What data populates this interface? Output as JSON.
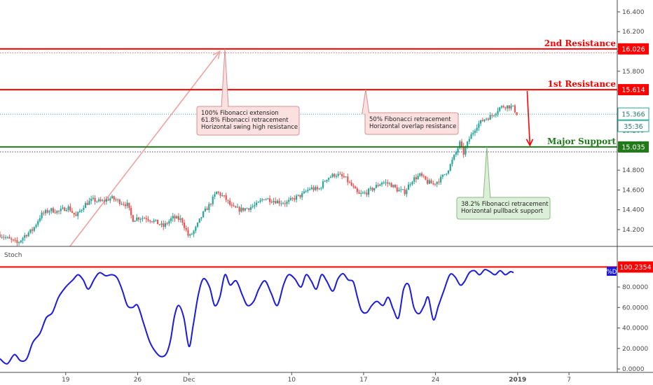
{
  "chart_data": [
    {
      "type": "candlestick",
      "panel": "price",
      "xlabel": "",
      "ylabel": "",
      "x_ticks": [
        {
          "label": "19",
          "day": 19
        },
        {
          "label": "26",
          "day": 26
        },
        {
          "label": "Dec",
          "day": 31
        },
        {
          "label": "10",
          "day": 41
        },
        {
          "label": "17",
          "day": 48
        },
        {
          "label": "24",
          "day": 55
        },
        {
          "label": "2019",
          "day": 63
        },
        {
          "label": "7",
          "day": 68
        }
      ],
      "x_range_days": [
        12.6,
        72.7
      ],
      "ylim": [
        14.03,
        16.52
      ],
      "y_ticks": [
        {
          "value": 14.2,
          "label": "14.200"
        },
        {
          "value": 14.4,
          "label": "14.400"
        },
        {
          "value": 14.6,
          "label": "14.600"
        },
        {
          "value": 14.8,
          "label": "14.800"
        },
        {
          "value": 15.0,
          "label": "15.000"
        },
        {
          "value": 15.2,
          "label": "15.200"
        },
        {
          "value": 15.4,
          "label": "15.400"
        },
        {
          "value": 15.6,
          "label": "15.600"
        },
        {
          "value": 15.8,
          "label": "15.800"
        },
        {
          "value": 16.0,
          "label": "16.000"
        },
        {
          "value": 16.2,
          "label": "16.200"
        },
        {
          "value": 16.4,
          "label": "16.400"
        }
      ],
      "price_path": [
        [
          12.6,
          14.15
        ],
        [
          13.5,
          14.1
        ],
        [
          14.3,
          14.06
        ],
        [
          15.0,
          14.14
        ],
        [
          15.8,
          14.2
        ],
        [
          16.6,
          14.35
        ],
        [
          17.5,
          14.4
        ],
        [
          18.3,
          14.38
        ],
        [
          19.2,
          14.43
        ],
        [
          20.0,
          14.33
        ],
        [
          20.8,
          14.45
        ],
        [
          21.6,
          14.5
        ],
        [
          22.5,
          14.48
        ],
        [
          23.4,
          14.52
        ],
        [
          24.3,
          14.48
        ],
        [
          25.0,
          14.45
        ],
        [
          25.5,
          14.3
        ],
        [
          26.0,
          14.32
        ],
        [
          26.8,
          14.32
        ],
        [
          27.7,
          14.28
        ],
        [
          28.5,
          14.23
        ],
        [
          29.4,
          14.32
        ],
        [
          30.3,
          14.3
        ],
        [
          31.0,
          14.12
        ],
        [
          31.6,
          14.2
        ],
        [
          32.3,
          14.35
        ],
        [
          33.0,
          14.45
        ],
        [
          33.7,
          14.58
        ],
        [
          34.5,
          14.52
        ],
        [
          35.2,
          14.42
        ],
        [
          36.0,
          14.4
        ],
        [
          36.8,
          14.42
        ],
        [
          37.6,
          14.45
        ],
        [
          38.3,
          14.52
        ],
        [
          39.0,
          14.5
        ],
        [
          39.8,
          14.48
        ],
        [
          40.5,
          14.47
        ],
        [
          41.3,
          14.52
        ],
        [
          42.0,
          14.55
        ],
        [
          42.8,
          14.62
        ],
        [
          43.6,
          14.6
        ],
        [
          44.4,
          14.72
        ],
        [
          45.3,
          14.76
        ],
        [
          46.2,
          14.72
        ],
        [
          47.0,
          14.62
        ],
        [
          47.5,
          14.55
        ],
        [
          48.2,
          14.57
        ],
        [
          49.0,
          14.62
        ],
        [
          49.8,
          14.68
        ],
        [
          50.6,
          14.66
        ],
        [
          51.3,
          14.6
        ],
        [
          52.0,
          14.58
        ],
        [
          52.7,
          14.7
        ],
        [
          53.5,
          14.75
        ],
        [
          54.2,
          14.68
        ],
        [
          54.8,
          14.66
        ],
        [
          55.6,
          14.72
        ],
        [
          56.3,
          14.82
        ],
        [
          57.0,
          14.98
        ],
        [
          57.4,
          15.08
        ],
        [
          57.7,
          14.96
        ],
        [
          58.3,
          15.12
        ],
        [
          59.0,
          15.25
        ],
        [
          59.8,
          15.32
        ],
        [
          60.5,
          15.35
        ],
        [
          61.2,
          15.43
        ],
        [
          61.8,
          15.45
        ],
        [
          62.5,
          15.44
        ],
        [
          63.0,
          15.36
        ]
      ],
      "levels": [
        {
          "name": "2nd Resistance",
          "value": 16.026,
          "label": "16.026",
          "color": "#ff0000"
        },
        {
          "name": "1st Resistance",
          "value": 15.614,
          "label": "15.614",
          "color": "#ff0000"
        },
        {
          "name": "Major Support",
          "value": 15.035,
          "label": "15.035",
          "color": "#207a1a"
        }
      ],
      "dotted_levels": [
        {
          "value": 15.985,
          "color": "#e07070"
        },
        {
          "value": 14.985,
          "color": "#4a4a7a"
        }
      ],
      "last_price": {
        "value": 15.366,
        "label": "15.366",
        "countdown": "35:36",
        "color": "#26a69a"
      },
      "trend_arrow": {
        "from": [
          19.4,
          14.03
        ],
        "to": [
          34.0,
          16.0
        ],
        "color": "#f4a0a0"
      },
      "drop_arrow": {
        "x": 64.2,
        "from": 15.6,
        "to": 15.05,
        "color": "#ff0000"
      },
      "annotations": [
        {
          "lines": [
            "100% Fibonacci extension",
            "61.8% Fibonacci retracement",
            "Horizontal swing high resistance"
          ],
          "anchor": [
            34.5,
            16.026
          ],
          "style": "resistance"
        },
        {
          "lines": [
            "50% Fibonacci retracement",
            "Horizontal overlap resistance"
          ],
          "anchor": [
            48.2,
            15.614
          ],
          "style": "resistance"
        },
        {
          "lines": [
            "38.2% Fibonacci retracement",
            "Horizontal pullback support"
          ],
          "anchor": [
            60.0,
            15.035
          ],
          "style": "support"
        }
      ]
    },
    {
      "type": "line",
      "panel": "indicator",
      "title": "Stoch",
      "xlabel": "",
      "ylabel": "",
      "ylim": [
        -2,
        106
      ],
      "y_ticks": [
        {
          "value": 0,
          "label": "0.0000"
        },
        {
          "value": 20,
          "label": "20.0000"
        },
        {
          "value": 40,
          "label": "40.0000"
        },
        {
          "value": 60,
          "label": "60.0000"
        },
        {
          "value": 80,
          "label": "80.0000"
        }
      ],
      "reference_level": {
        "value": 100.2354,
        "label": "100.2354",
        "color": "#ff0000"
      },
      "series": [
        {
          "name": "%D",
          "color": "#1b1be0",
          "points": [
            [
              12.6,
              10
            ],
            [
              13.3,
              5
            ],
            [
              14.0,
              14
            ],
            [
              14.6,
              8
            ],
            [
              15.2,
              10
            ],
            [
              15.8,
              26
            ],
            [
              16.5,
              35
            ],
            [
              17.1,
              50
            ],
            [
              17.7,
              55
            ],
            [
              18.3,
              70
            ],
            [
              19.0,
              80
            ],
            [
              19.7,
              87
            ],
            [
              20.2,
              92
            ],
            [
              20.7,
              87
            ],
            [
              21.2,
              78
            ],
            [
              21.8,
              88
            ],
            [
              22.3,
              94
            ],
            [
              22.9,
              91
            ],
            [
              23.5,
              92
            ],
            [
              24.0,
              89
            ],
            [
              24.5,
              77
            ],
            [
              25.0,
              62
            ],
            [
              25.5,
              60
            ],
            [
              26.0,
              62
            ],
            [
              26.6,
              44
            ],
            [
              27.2,
              26
            ],
            [
              27.8,
              16
            ],
            [
              28.3,
              12
            ],
            [
              28.8,
              15
            ],
            [
              29.2,
              28
            ],
            [
              29.6,
              52
            ],
            [
              30.0,
              62
            ],
            [
              30.5,
              50
            ],
            [
              31.0,
              22
            ],
            [
              31.4,
              42
            ],
            [
              31.9,
              72
            ],
            [
              32.4,
              88
            ],
            [
              33.0,
              80
            ],
            [
              33.5,
              62
            ],
            [
              34.0,
              70
            ],
            [
              34.5,
              92
            ],
            [
              35.0,
              82
            ],
            [
              35.6,
              86
            ],
            [
              36.2,
              72
            ],
            [
              36.7,
              62
            ],
            [
              37.3,
              66
            ],
            [
              37.8,
              78
            ],
            [
              38.4,
              86
            ],
            [
              39.0,
              74
            ],
            [
              39.6,
              62
            ],
            [
              40.2,
              82
            ],
            [
              40.7,
              92
            ],
            [
              41.3,
              88
            ],
            [
              41.9,
              80
            ],
            [
              42.4,
              92
            ],
            [
              42.9,
              86
            ],
            [
              43.4,
              78
            ],
            [
              43.9,
              92
            ],
            [
              44.4,
              86
            ],
            [
              45.0,
              76
            ],
            [
              45.5,
              88
            ],
            [
              46.0,
              93
            ],
            [
              46.5,
              87
            ],
            [
              47.0,
              85
            ],
            [
              47.4,
              70
            ],
            [
              47.8,
              57
            ],
            [
              48.3,
              55
            ],
            [
              48.8,
              62
            ],
            [
              49.3,
              66
            ],
            [
              49.9,
              62
            ],
            [
              50.4,
              70
            ],
            [
              50.9,
              58
            ],
            [
              51.4,
              50
            ],
            [
              51.9,
              78
            ],
            [
              52.4,
              82
            ],
            [
              52.9,
              60
            ],
            [
              53.4,
              54
            ],
            [
              53.9,
              62
            ],
            [
              54.3,
              70
            ],
            [
              54.8,
              48
            ],
            [
              55.3,
              62
            ],
            [
              55.8,
              76
            ],
            [
              56.4,
              92
            ],
            [
              56.9,
              90
            ],
            [
              57.4,
              82
            ],
            [
              57.8,
              85
            ],
            [
              58.3,
              94
            ],
            [
              58.8,
              96
            ],
            [
              59.3,
              92
            ],
            [
              59.8,
              97
            ],
            [
              60.3,
              95
            ],
            [
              60.8,
              92
            ],
            [
              61.3,
              96
            ],
            [
              61.8,
              92
            ],
            [
              62.3,
              95
            ],
            [
              62.6,
              94
            ]
          ]
        }
      ]
    }
  ]
}
